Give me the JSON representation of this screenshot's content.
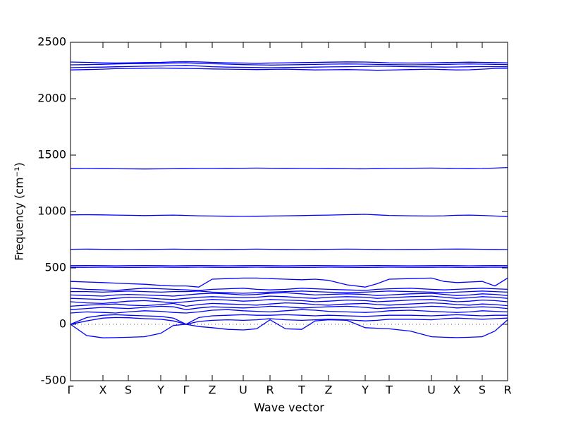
{
  "chart_data": {
    "type": "line",
    "xlabel": "Wave vector",
    "ylabel": "Frequency (cm⁻¹)",
    "xlim": [
      0,
      620
    ],
    "ylim": [
      -500,
      2500
    ],
    "yticks": [
      -500,
      0,
      500,
      1000,
      1500,
      2000,
      2500
    ],
    "xticks": [
      {
        "value": 0,
        "label": "Γ"
      },
      {
        "value": 46,
        "label": "X"
      },
      {
        "value": 82,
        "label": "S"
      },
      {
        "value": 128,
        "label": "Y"
      },
      {
        "value": 164,
        "label": "Γ"
      },
      {
        "value": 201,
        "label": "Z"
      },
      {
        "value": 245,
        "label": "U"
      },
      {
        "value": 283,
        "label": "R"
      },
      {
        "value": 328,
        "label": "T"
      },
      {
        "value": 366,
        "label": "Z"
      },
      {
        "value": 418,
        "label": "Y"
      },
      {
        "value": 452,
        "label": "T"
      },
      {
        "value": 512,
        "label": "U"
      },
      {
        "value": 548,
        "label": "X"
      },
      {
        "value": 584,
        "label": "S"
      },
      {
        "value": 620,
        "label": "R"
      }
    ],
    "zero_line": true,
    "x": [
      0,
      23,
      46,
      64,
      82,
      105,
      128,
      146,
      164,
      182,
      201,
      223,
      245,
      264,
      283,
      305,
      328,
      347,
      366,
      392,
      418,
      435,
      452,
      482,
      512,
      530,
      548,
      566,
      584,
      602,
      620
    ],
    "series": [
      {
        "color": "#0000ff",
        "values": [
          0,
          -100,
          -120,
          -118,
          -115,
          -110,
          -80,
          -10,
          0,
          -20,
          -30,
          -45,
          -50,
          -40,
          40,
          -40,
          -45,
          30,
          40,
          35,
          -30,
          -35,
          -40,
          -60,
          -110,
          -115,
          -118,
          -115,
          -110,
          -60,
          40
        ]
      },
      {
        "color": "#0000ff",
        "values": [
          0,
          30,
          55,
          60,
          58,
          50,
          45,
          30,
          0,
          25,
          35,
          40,
          35,
          40,
          50,
          40,
          35,
          40,
          45,
          40,
          30,
          35,
          45,
          45,
          40,
          50,
          55,
          50,
          45,
          50,
          55
        ]
      },
      {
        "color": "#0000ff",
        "values": [
          0,
          60,
          80,
          85,
          80,
          75,
          70,
          55,
          0,
          60,
          75,
          80,
          85,
          80,
          80,
          85,
          80,
          75,
          80,
          75,
          70,
          75,
          80,
          80,
          75,
          80,
          85,
          80,
          75,
          80,
          80
        ]
      },
      {
        "color": "#0000ff",
        "values": [
          100,
          110,
          105,
          100,
          110,
          120,
          115,
          105,
          100,
          110,
          125,
          130,
          120,
          115,
          110,
          120,
          130,
          125,
          115,
          110,
          105,
          110,
          120,
          125,
          115,
          110,
          105,
          110,
          120,
          115,
          110
        ]
      },
      {
        "color": "#0000ff",
        "values": [
          130,
          140,
          150,
          145,
          140,
          150,
          160,
          155,
          130,
          145,
          155,
          150,
          145,
          150,
          160,
          155,
          145,
          150,
          155,
          160,
          150,
          140,
          145,
          150,
          160,
          155,
          145,
          150,
          155,
          150,
          140
        ]
      },
      {
        "color": "#0000ff",
        "values": [
          160,
          170,
          175,
          180,
          170,
          165,
          175,
          185,
          160,
          175,
          185,
          180,
          175,
          170,
          180,
          190,
          185,
          175,
          170,
          180,
          185,
          175,
          170,
          180,
          190,
          185,
          175,
          170,
          180,
          175,
          165
        ]
      },
      {
        "color": "#0000ff",
        "values": [
          200,
          190,
          185,
          195,
          205,
          210,
          200,
          190,
          200,
          210,
          220,
          215,
          205,
          210,
          220,
          215,
          210,
          200,
          205,
          215,
          210,
          200,
          205,
          215,
          220,
          210,
          200,
          205,
          215,
          210,
          200
        ]
      },
      {
        "color": "#0000ff",
        "values": [
          230,
          225,
          220,
          230,
          240,
          235,
          225,
          220,
          230,
          240,
          245,
          240,
          235,
          240,
          250,
          245,
          235,
          230,
          240,
          245,
          240,
          230,
          235,
          245,
          250,
          240,
          230,
          235,
          245,
          240,
          230
        ]
      },
      {
        "color": "#0000ff",
        "values": [
          260,
          255,
          250,
          260,
          265,
          260,
          255,
          250,
          260,
          270,
          275,
          270,
          260,
          265,
          275,
          280,
          270,
          260,
          265,
          270,
          265,
          255,
          260,
          270,
          275,
          265,
          255,
          260,
          270,
          265,
          255
        ]
      },
      {
        "color": "#0000ff",
        "values": [
          290,
          290,
          285,
          290,
          295,
          290,
          285,
          290,
          290,
          295,
          285,
          280,
          275,
          280,
          285,
          290,
          295,
          290,
          285,
          280,
          285,
          290,
          295,
          290,
          285,
          280,
          285,
          290,
          295,
          290,
          285
        ]
      },
      {
        "color": "#0000ff",
        "values": [
          320,
          310,
          305,
          300,
          310,
          320,
          315,
          310,
          305,
          300,
          310,
          315,
          320,
          310,
          305,
          310,
          320,
          315,
          310,
          305,
          300,
          310,
          315,
          320,
          310,
          305,
          310,
          315,
          320,
          315,
          310
        ]
      },
      {
        "color": "#0000ff",
        "values": [
          380,
          375,
          370,
          365,
          360,
          355,
          345,
          340,
          340,
          330,
          400,
          405,
          410,
          410,
          405,
          400,
          395,
          400,
          390,
          350,
          330,
          360,
          400,
          405,
          410,
          380,
          370,
          375,
          380,
          340,
          410
        ]
      },
      {
        "color": "#0000ff",
        "values": [
          505,
          505,
          506,
          505,
          504,
          505,
          506,
          505,
          505,
          506,
          505,
          504,
          505,
          506,
          505,
          505,
          504,
          505,
          506,
          505,
          504,
          505,
          506,
          505,
          505,
          506,
          505,
          504,
          505,
          506,
          505
        ]
      },
      {
        "color": "#0000ff",
        "values": [
          520,
          521,
          520,
          519,
          520,
          521,
          520,
          519,
          520,
          521,
          520,
          519,
          520,
          521,
          520,
          519,
          520,
          521,
          520,
          519,
          520,
          521,
          520,
          519,
          520,
          521,
          520,
          519,
          520,
          521,
          520
        ]
      },
      {
        "color": "#0000ff",
        "values": [
          665,
          666,
          665,
          664,
          663,
          664,
          665,
          666,
          665,
          664,
          663,
          664,
          665,
          666,
          665,
          664,
          663,
          664,
          665,
          666,
          665,
          664,
          663,
          664,
          665,
          666,
          667,
          666,
          665,
          664,
          663
        ]
      },
      {
        "color": "#0000ff",
        "values": [
          970,
          972,
          970,
          968,
          966,
          964,
          966,
          968,
          965,
          962,
          960,
          958,
          957,
          958,
          960,
          962,
          964,
          966,
          968,
          972,
          975,
          970,
          965,
          962,
          960,
          962,
          966,
          968,
          965,
          960,
          955
        ]
      },
      {
        "color": "#0000ff",
        "values": [
          1380,
          1381,
          1380,
          1379,
          1378,
          1377,
          1378,
          1379,
          1380,
          1381,
          1382,
          1383,
          1384,
          1385,
          1384,
          1383,
          1382,
          1381,
          1380,
          1379,
          1378,
          1380,
          1382,
          1384,
          1385,
          1384,
          1382,
          1380,
          1381,
          1385,
          1390
        ]
      },
      {
        "color": "#0000ff",
        "values": [
          2255,
          2258,
          2262,
          2266,
          2268,
          2270,
          2272,
          2270,
          2268,
          2266,
          2264,
          2262,
          2260,
          2258,
          2260,
          2262,
          2258,
          2255,
          2256,
          2258,
          2255,
          2252,
          2254,
          2258,
          2262,
          2258,
          2255,
          2256,
          2262,
          2268,
          2270
        ]
      },
      {
        "color": "#0000ff",
        "values": [
          2275,
          2278,
          2280,
          2283,
          2285,
          2288,
          2290,
          2293,
          2295,
          2290,
          2284,
          2280,
          2278,
          2276,
          2275,
          2276,
          2278,
          2280,
          2282,
          2284,
          2286,
          2288,
          2287,
          2284,
          2282,
          2280,
          2281,
          2283,
          2285,
          2284,
          2283
        ]
      },
      {
        "color": "#0000ff",
        "values": [
          2300,
          2302,
          2305,
          2308,
          2310,
          2312,
          2314,
          2316,
          2318,
          2314,
          2310,
          2306,
          2302,
          2300,
          2298,
          2300,
          2302,
          2304,
          2306,
          2308,
          2306,
          2304,
          2302,
          2300,
          2302,
          2304,
          2306,
          2308,
          2306,
          2304,
          2302
        ]
      },
      {
        "color": "#0000ff",
        "values": [
          2325,
          2322,
          2318,
          2316,
          2318,
          2320,
          2322,
          2326,
          2328,
          2326,
          2322,
          2318,
          2316,
          2314,
          2316,
          2318,
          2320,
          2322,
          2324,
          2326,
          2325,
          2322,
          2318,
          2316,
          2318,
          2320,
          2322,
          2324,
          2322,
          2320,
          2318
        ]
      }
    ]
  }
}
